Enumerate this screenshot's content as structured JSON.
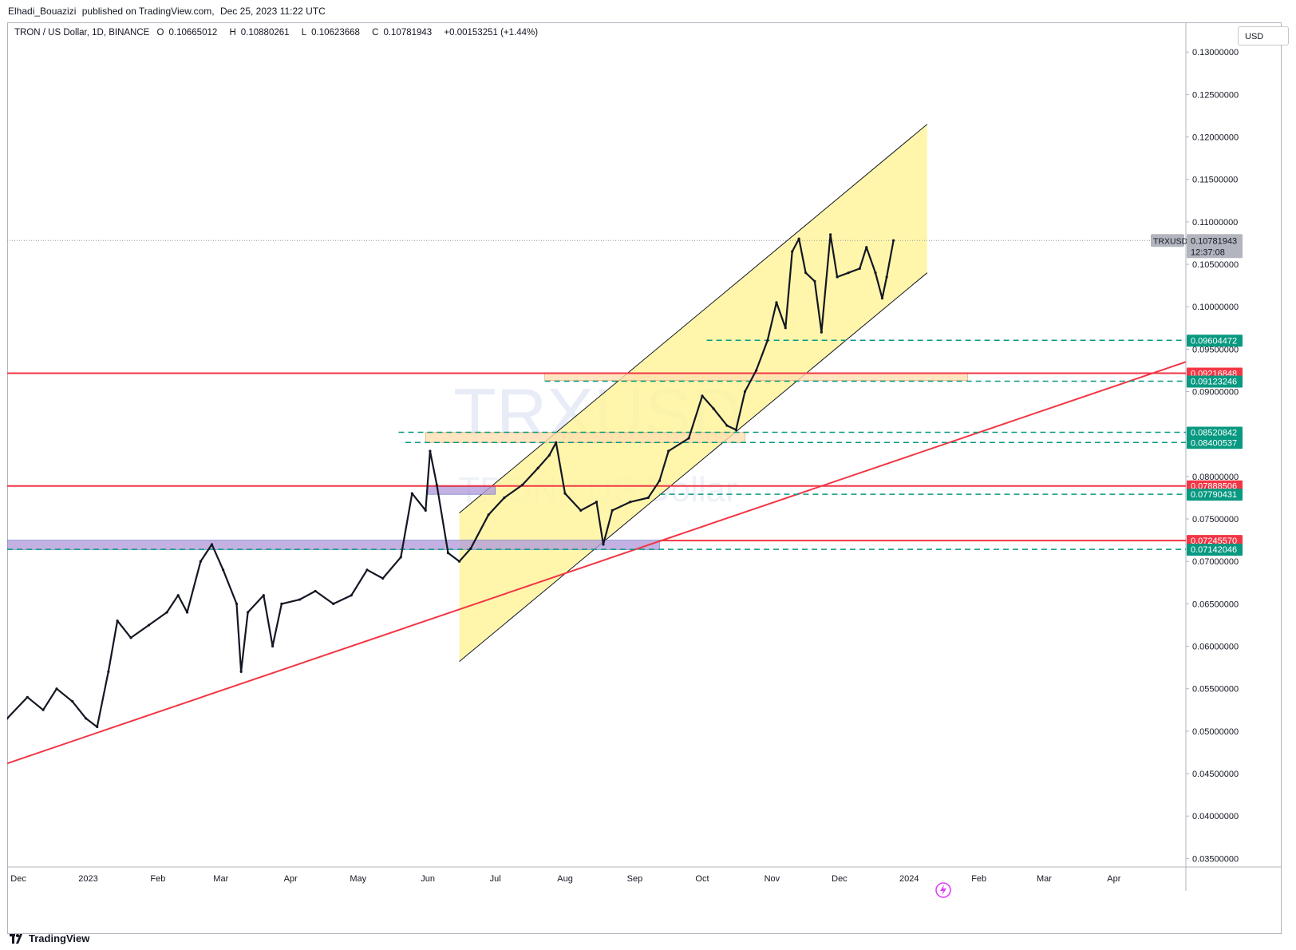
{
  "caption": {
    "author": "Elhadi_Bouazizi",
    "text": "published on TradingView.com,",
    "datetime": "Dec 25, 2023 11:22 UTC"
  },
  "legend": {
    "symbol": "TRON / US Dollar, 1D, BINANCE",
    "open_label": "O",
    "open": "0.10665012",
    "high_label": "H",
    "high": "0.10880261",
    "low_label": "L",
    "low": "0.10623668",
    "close_label": "C",
    "close": "0.10781943",
    "change": "+0.00153251 (+1.44%)"
  },
  "currency_button": "USD",
  "watermark": {
    "ticker": "TRXUSD",
    "name": "TRON / US Dollar"
  },
  "footer": {
    "brand": "TradingView"
  },
  "colors": {
    "up": "#131722",
    "down": "#131722",
    "channel_fill": "#fff59d",
    "red_line": "#f23645",
    "dashed": "#089981",
    "zone_orange": "#ffe0b2",
    "zone_blue": "#b39ddb"
  },
  "chart_data": {
    "type": "candlestick",
    "title": "TRON / US Dollar, 1D, BINANCE",
    "x_ticks": [
      "Dec",
      "2023",
      "Feb",
      "Mar",
      "Apr",
      "May",
      "Jun",
      "Jul",
      "Aug",
      "Sep",
      "Oct",
      "Nov",
      "Dec",
      "2024",
      "Feb",
      "Mar",
      "Apr"
    ],
    "x_tick_dates": [
      "2022-12-01",
      "2023-01-01",
      "2023-02-01",
      "2023-03-01",
      "2023-04-01",
      "2023-05-01",
      "2023-06-01",
      "2023-07-01",
      "2023-08-01",
      "2023-09-01",
      "2023-10-01",
      "2023-11-01",
      "2023-12-01",
      "2024-01-01",
      "2024-02-01",
      "2024-03-01",
      "2024-04-01"
    ],
    "y_ticks": [
      "0.03500000",
      "0.04000000",
      "0.04500000",
      "0.05000000",
      "0.05500000",
      "0.06000000",
      "0.06500000",
      "0.07000000",
      "0.07500000",
      "0.08000000",
      "0.08500000",
      "0.09000000",
      "0.09500000",
      "0.10000000",
      "0.10500000",
      "0.11000000",
      "0.11500000",
      "0.12000000",
      "0.12500000",
      "0.13000000"
    ],
    "ylim": [
      0.034,
      0.1335
    ],
    "x_range": [
      "2022-11-26",
      "2024-05-03"
    ],
    "price_series": [
      {
        "date": "2022-11-26",
        "value": 0.0515
      },
      {
        "date": "2022-12-05",
        "value": 0.054
      },
      {
        "date": "2022-12-12",
        "value": 0.0525
      },
      {
        "date": "2022-12-18",
        "value": 0.055
      },
      {
        "date": "2022-12-25",
        "value": 0.0535
      },
      {
        "date": "2022-12-31",
        "value": 0.0515
      },
      {
        "date": "2023-01-05",
        "value": 0.0505
      },
      {
        "date": "2023-01-10",
        "value": 0.057
      },
      {
        "date": "2023-01-14",
        "value": 0.063
      },
      {
        "date": "2023-01-20",
        "value": 0.061
      },
      {
        "date": "2023-01-28",
        "value": 0.0625
      },
      {
        "date": "2023-02-05",
        "value": 0.064
      },
      {
        "date": "2023-02-10",
        "value": 0.066
      },
      {
        "date": "2023-02-14",
        "value": 0.064
      },
      {
        "date": "2023-02-20",
        "value": 0.07
      },
      {
        "date": "2023-02-25",
        "value": 0.072
      },
      {
        "date": "2023-03-02",
        "value": 0.069
      },
      {
        "date": "2023-03-08",
        "value": 0.065
      },
      {
        "date": "2023-03-10",
        "value": 0.057
      },
      {
        "date": "2023-03-13",
        "value": 0.064
      },
      {
        "date": "2023-03-20",
        "value": 0.066
      },
      {
        "date": "2023-03-24",
        "value": 0.06
      },
      {
        "date": "2023-03-28",
        "value": 0.065
      },
      {
        "date": "2023-04-05",
        "value": 0.0655
      },
      {
        "date": "2023-04-12",
        "value": 0.0665
      },
      {
        "date": "2023-04-20",
        "value": 0.065
      },
      {
        "date": "2023-04-28",
        "value": 0.066
      },
      {
        "date": "2023-05-05",
        "value": 0.069
      },
      {
        "date": "2023-05-12",
        "value": 0.068
      },
      {
        "date": "2023-05-20",
        "value": 0.0705
      },
      {
        "date": "2023-05-25",
        "value": 0.078
      },
      {
        "date": "2023-05-31",
        "value": 0.076
      },
      {
        "date": "2023-06-02",
        "value": 0.083
      },
      {
        "date": "2023-06-05",
        "value": 0.079
      },
      {
        "date": "2023-06-10",
        "value": 0.071
      },
      {
        "date": "2023-06-15",
        "value": 0.07
      },
      {
        "date": "2023-06-20",
        "value": 0.0715
      },
      {
        "date": "2023-06-28",
        "value": 0.0755
      },
      {
        "date": "2023-07-05",
        "value": 0.0775
      },
      {
        "date": "2023-07-13",
        "value": 0.079
      },
      {
        "date": "2023-07-20",
        "value": 0.081
      },
      {
        "date": "2023-07-25",
        "value": 0.0825
      },
      {
        "date": "2023-07-28",
        "value": 0.084
      },
      {
        "date": "2023-08-01",
        "value": 0.078
      },
      {
        "date": "2023-08-08",
        "value": 0.076
      },
      {
        "date": "2023-08-15",
        "value": 0.077
      },
      {
        "date": "2023-08-18",
        "value": 0.072
      },
      {
        "date": "2023-08-22",
        "value": 0.076
      },
      {
        "date": "2023-08-30",
        "value": 0.077
      },
      {
        "date": "2023-09-07",
        "value": 0.0775
      },
      {
        "date": "2023-09-12",
        "value": 0.0795
      },
      {
        "date": "2023-09-16",
        "value": 0.083
      },
      {
        "date": "2023-09-25",
        "value": 0.0845
      },
      {
        "date": "2023-10-01",
        "value": 0.0895
      },
      {
        "date": "2023-10-06",
        "value": 0.088
      },
      {
        "date": "2023-10-12",
        "value": 0.086
      },
      {
        "date": "2023-10-16",
        "value": 0.0855
      },
      {
        "date": "2023-10-20",
        "value": 0.09
      },
      {
        "date": "2023-10-25",
        "value": 0.0925
      },
      {
        "date": "2023-10-30",
        "value": 0.096
      },
      {
        "date": "2023-11-03",
        "value": 0.1005
      },
      {
        "date": "2023-11-07",
        "value": 0.0975
      },
      {
        "date": "2023-11-10",
        "value": 0.1065
      },
      {
        "date": "2023-11-13",
        "value": 0.108
      },
      {
        "date": "2023-11-16",
        "value": 0.104
      },
      {
        "date": "2023-11-20",
        "value": 0.103
      },
      {
        "date": "2023-11-23",
        "value": 0.097
      },
      {
        "date": "2023-11-27",
        "value": 0.1085
      },
      {
        "date": "2023-11-30",
        "value": 0.1035
      },
      {
        "date": "2023-12-05",
        "value": 0.104
      },
      {
        "date": "2023-12-10",
        "value": 0.1045
      },
      {
        "date": "2023-12-13",
        "value": 0.107
      },
      {
        "date": "2023-12-17",
        "value": 0.104
      },
      {
        "date": "2023-12-20",
        "value": 0.101
      },
      {
        "date": "2023-12-22",
        "value": 0.1035
      },
      {
        "date": "2023-12-25",
        "value": 0.1078
      }
    ],
    "last_price_label": "TRXUSD",
    "last_price": "0.10781943",
    "countdown": "12:37:08",
    "horizontal_levels": [
      {
        "value": 0.09604472,
        "label": "0.09604472",
        "style": "dashed",
        "color": "#089981",
        "from": "2023-10-03"
      },
      {
        "value": 0.09216848,
        "label": "0.09216848",
        "style": "solid",
        "color": "#f23645",
        "from": "2022-11-26"
      },
      {
        "value": 0.09123246,
        "label": "0.09123246",
        "style": "dashed",
        "color": "#089981",
        "from": "2023-07-23"
      },
      {
        "value": 0.08520842,
        "label": "0.08520842",
        "style": "dashed",
        "color": "#089981",
        "from": "2023-05-19"
      },
      {
        "value": 0.08400537,
        "label": "0.08400537",
        "style": "dashed",
        "color": "#089981",
        "from": "2023-05-22"
      },
      {
        "value": 0.07888506,
        "label": "0.07888506",
        "style": "solid",
        "color": "#f23645",
        "from": "2022-11-26"
      },
      {
        "value": 0.07790431,
        "label": "0.07790431",
        "style": "dashed",
        "color": "#089981",
        "from": "2023-09-12"
      },
      {
        "value": 0.0724557,
        "label": "0.07245570",
        "style": "solid",
        "color": "#f23645",
        "from": "2023-09-12"
      },
      {
        "value": 0.07142046,
        "label": "0.07142046",
        "style": "dashed",
        "color": "#089981",
        "from": "2022-11-26"
      }
    ],
    "zones": [
      {
        "from": "2023-07-23",
        "to": "2024-01-27",
        "top": 0.0922,
        "bottom": 0.0913,
        "color": "#ffe0b2"
      },
      {
        "from": "2023-05-31",
        "to": "2023-10-20",
        "top": 0.0852,
        "bottom": 0.084,
        "color": "#ffe0b2"
      },
      {
        "from": "2023-06-01",
        "to": "2023-07-01",
        "top": 0.0788,
        "bottom": 0.0779,
        "color": "#b39ddb"
      },
      {
        "from": "2022-11-26",
        "to": "2023-09-12",
        "top": 0.0725,
        "bottom": 0.0714,
        "color": "#b39ddb"
      }
    ],
    "trendline": {
      "from": {
        "date": "2022-11-26",
        "value": 0.0462
      },
      "to": {
        "date": "2024-05-03",
        "value": 0.0935
      },
      "color": "#f23645"
    },
    "channel": {
      "start": "2023-06-15",
      "end": "2024-01-09",
      "upper": [
        0.0757,
        0.1215
      ],
      "lower": [
        0.0582,
        0.104
      ],
      "fill": "#fff59d"
    }
  }
}
